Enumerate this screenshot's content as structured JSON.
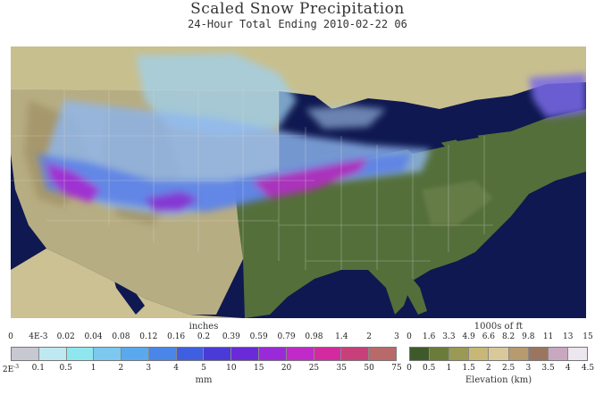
{
  "title": "Scaled Snow Precipitation",
  "subtitle": "24-Hour Total Ending 2010-02-22 06",
  "snow_legend": {
    "top_unit": "inches",
    "bottom_unit": "mm",
    "inch_ticks": [
      "0",
      "4E-3",
      "0.02",
      "0.04",
      "0.08",
      "0.12",
      "0.16",
      "0.2",
      "0.39",
      "0.59",
      "0.79",
      "0.98",
      "1.4",
      "2",
      "3"
    ],
    "mm_ticks": [
      "2E-3",
      "0.1",
      "0.5",
      "1",
      "2",
      "3",
      "4",
      "5",
      "10",
      "15",
      "20",
      "25",
      "35",
      "50",
      "75"
    ],
    "colors": [
      "#c8c8d2",
      "#bfe8f0",
      "#8fe6ef",
      "#7cc8ee",
      "#5aa9ee",
      "#4a86e8",
      "#3f5fe0",
      "#4a3bd6",
      "#6a2ad8",
      "#9a2ad8",
      "#c02ac8",
      "#d42aa0",
      "#c8407a",
      "#b86a6a"
    ]
  },
  "elevation_legend": {
    "top_unit": "1000s of ft",
    "bottom_unit": "Elevation (km)",
    "ft_ticks": [
      "0",
      "1.6",
      "3.3",
      "4.9",
      "6.6",
      "8.2",
      "9.8",
      "11",
      "13",
      "15"
    ],
    "km_ticks": [
      "0",
      "0.5",
      "1",
      "1.5",
      "2",
      "2.5",
      "3",
      "3.5",
      "4",
      "4.5"
    ],
    "colors": [
      "#3f5a2a",
      "#6b7c3a",
      "#9a9a55",
      "#c8b878",
      "#d8c99a",
      "#b89a70",
      "#9a7660",
      "#c8a8c0",
      "#ece6ee"
    ]
  }
}
